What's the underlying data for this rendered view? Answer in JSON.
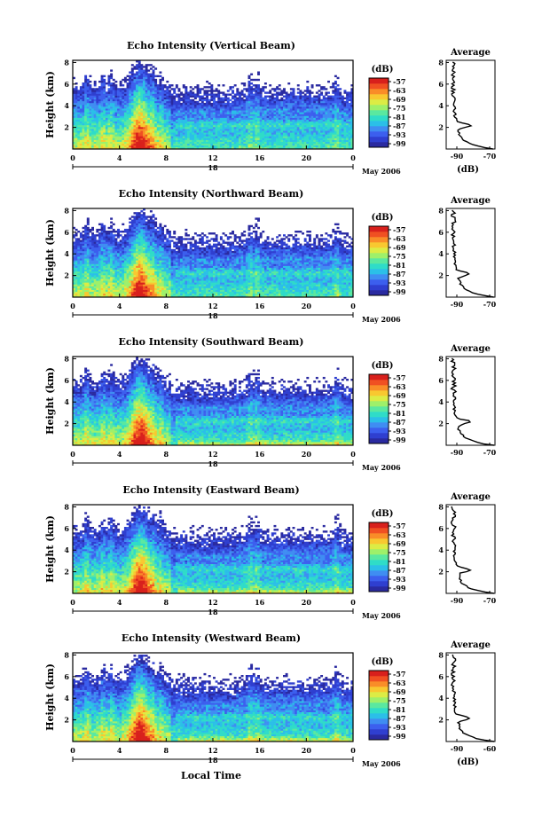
{
  "colorbar": {
    "unit": "(dB)",
    "colors": [
      "#2a2aa0",
      "#2f3fd0",
      "#3c5fee",
      "#3f8df2",
      "#2bbfe8",
      "#2fdcc8",
      "#5ae8a0",
      "#9ef06a",
      "#dcec45",
      "#f8c830",
      "#f98d28",
      "#f05022",
      "#d8201c"
    ]
  },
  "chart_data": [
    {
      "type": "heatmap",
      "title": "Echo Intensity (Vertical Beam)",
      "ylabel": "Height (km)",
      "xticks": [
        "0",
        "4",
        "8",
        "12",
        "16",
        "20",
        "0"
      ],
      "yticks": [
        "2",
        "4",
        "6",
        "8"
      ],
      "date_ticks": [
        "18"
      ],
      "date_label": "May 2006",
      "colorbar_ticks": [
        "-57",
        "-63",
        "-69",
        "-75",
        "-81",
        "-87",
        "-93",
        "-99"
      ],
      "profile": {
        "title": "Average",
        "xlabel": "(dB)",
        "xticks": [
          "-90",
          "-70"
        ],
        "yticks": [
          "2",
          "4",
          "6",
          "8"
        ]
      }
    },
    {
      "type": "heatmap",
      "title": "Echo Intensity (Northward Beam)",
      "ylabel": "Height (km)",
      "xticks": [
        "0",
        "4",
        "8",
        "12",
        "16",
        "20",
        "0"
      ],
      "yticks": [
        "2",
        "4",
        "6",
        "8"
      ],
      "date_ticks": [
        "18"
      ],
      "date_label": "May 2006",
      "colorbar_ticks": [
        "-57",
        "-63",
        "-69",
        "-75",
        "-81",
        "-87",
        "-93",
        "-99"
      ],
      "profile": {
        "title": "Average",
        "xlabel": "",
        "xticks": [
          "-90",
          "-70"
        ],
        "yticks": [
          "2",
          "4",
          "6",
          "8"
        ]
      }
    },
    {
      "type": "heatmap",
      "title": "Echo Intensity (Southward Beam)",
      "ylabel": "Height (km)",
      "xticks": [
        "0",
        "4",
        "8",
        "12",
        "16",
        "20",
        "0"
      ],
      "yticks": [
        "2",
        "4",
        "6",
        "8"
      ],
      "date_ticks": [
        "18"
      ],
      "date_label": "May 2006",
      "colorbar_ticks": [
        "-57",
        "-63",
        "-69",
        "-75",
        "-81",
        "-87",
        "-93",
        "-99"
      ],
      "profile": {
        "title": "Average",
        "xlabel": "",
        "xticks": [
          "-90",
          "-70"
        ],
        "yticks": [
          "2",
          "4",
          "6",
          "8"
        ]
      }
    },
    {
      "type": "heatmap",
      "title": "Echo Intensity (Eastward Beam)",
      "ylabel": "Height (km)",
      "xticks": [
        "0",
        "4",
        "8",
        "12",
        "16",
        "20",
        "0"
      ],
      "yticks": [
        "2",
        "4",
        "6",
        "8"
      ],
      "date_ticks": [
        "18"
      ],
      "date_label": "May 2006",
      "colorbar_ticks": [
        "-57",
        "-63",
        "-69",
        "-75",
        "-81",
        "-87",
        "-93",
        "-99"
      ],
      "profile": {
        "title": "Average",
        "xlabel": "",
        "xticks": [
          "-90",
          "-70"
        ],
        "yticks": [
          "2",
          "4",
          "6",
          "8"
        ]
      }
    },
    {
      "type": "heatmap",
      "title": "Echo Intensity (Westward Beam)",
      "ylabel": "Height (km)",
      "xticks": [
        "0",
        "4",
        "8",
        "12",
        "16",
        "20",
        "0"
      ],
      "yticks": [
        "2",
        "4",
        "6",
        "8"
      ],
      "date_ticks": [
        "18"
      ],
      "date_label": "May 2006",
      "colorbar_ticks": [
        "-57",
        "-63",
        "-69",
        "-75",
        "-81",
        "-87",
        "-93",
        "-99"
      ],
      "profile": {
        "title": "Average",
        "xlabel": "(dB)",
        "xticks": [
          "-90",
          "-60"
        ],
        "yticks": [
          "2",
          "4",
          "6",
          "8"
        ]
      }
    }
  ],
  "xlabel": "Local Time"
}
